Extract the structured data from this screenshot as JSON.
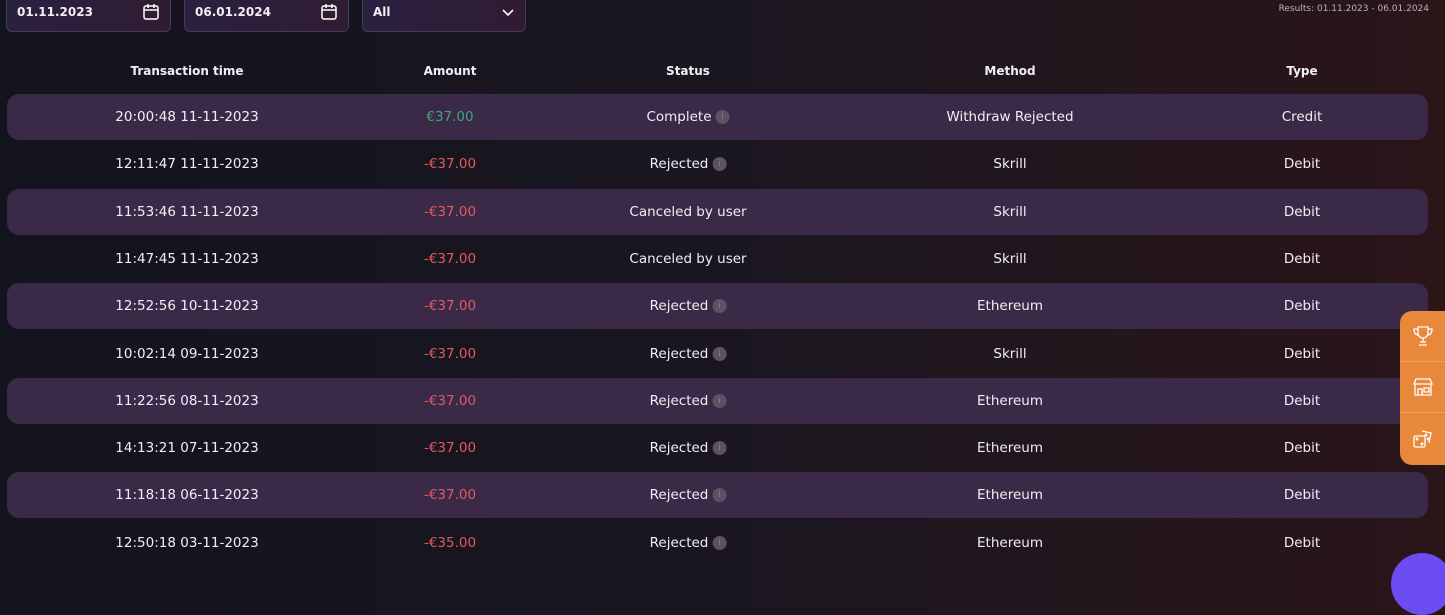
{
  "filters": {
    "date_from": "01.11.2023",
    "date_to": "06.01.2024",
    "type_select": "All"
  },
  "results_label": "Results: 01.11.2023 - 06.01.2024",
  "columns": [
    "Transaction time",
    "Amount",
    "Status",
    "Method",
    "Type"
  ],
  "rows": [
    {
      "time": "20:00:48 11-11-2023",
      "amount": "€37.00",
      "amount_sign": "positive",
      "status": "Complete",
      "info": true,
      "method": "Withdraw Rejected",
      "type": "Credit"
    },
    {
      "time": "12:11:47 11-11-2023",
      "amount": "-€37.00",
      "amount_sign": "negative",
      "status": "Rejected",
      "info": true,
      "method": "Skrill",
      "type": "Debit"
    },
    {
      "time": "11:53:46 11-11-2023",
      "amount": "-€37.00",
      "amount_sign": "negative",
      "status": "Canceled by user",
      "info": false,
      "method": "Skrill",
      "type": "Debit"
    },
    {
      "time": "11:47:45 11-11-2023",
      "amount": "-€37.00",
      "amount_sign": "negative",
      "status": "Canceled by user",
      "info": false,
      "method": "Skrill",
      "type": "Debit"
    },
    {
      "time": "12:52:56 10-11-2023",
      "amount": "-€37.00",
      "amount_sign": "negative",
      "status": "Rejected",
      "info": true,
      "method": "Ethereum",
      "type": "Debit"
    },
    {
      "time": "10:02:14 09-11-2023",
      "amount": "-€37.00",
      "amount_sign": "negative",
      "status": "Rejected",
      "info": true,
      "method": "Skrill",
      "type": "Debit"
    },
    {
      "time": "11:22:56 08-11-2023",
      "amount": "-€37.00",
      "amount_sign": "negative",
      "status": "Rejected",
      "info": true,
      "method": "Ethereum",
      "type": "Debit"
    },
    {
      "time": "14:13:21 07-11-2023",
      "amount": "-€37.00",
      "amount_sign": "negative",
      "status": "Rejected",
      "info": true,
      "method": "Ethereum",
      "type": "Debit"
    },
    {
      "time": "11:18:18 06-11-2023",
      "amount": "-€37.00",
      "amount_sign": "negative",
      "status": "Rejected",
      "info": true,
      "method": "Ethereum",
      "type": "Debit"
    },
    {
      "time": "12:50:18 03-11-2023",
      "amount": "-€35.00",
      "amount_sign": "negative",
      "status": "Rejected",
      "info": true,
      "method": "Ethereum",
      "type": "Debit"
    }
  ],
  "side_menu": [
    "trophy-icon",
    "shop-icon",
    "dice-icon"
  ],
  "colors": {
    "positive": "#3fa77a",
    "negative": "#e05a62",
    "side_menu": "#e8883a",
    "chat": "#6a4cf0"
  }
}
